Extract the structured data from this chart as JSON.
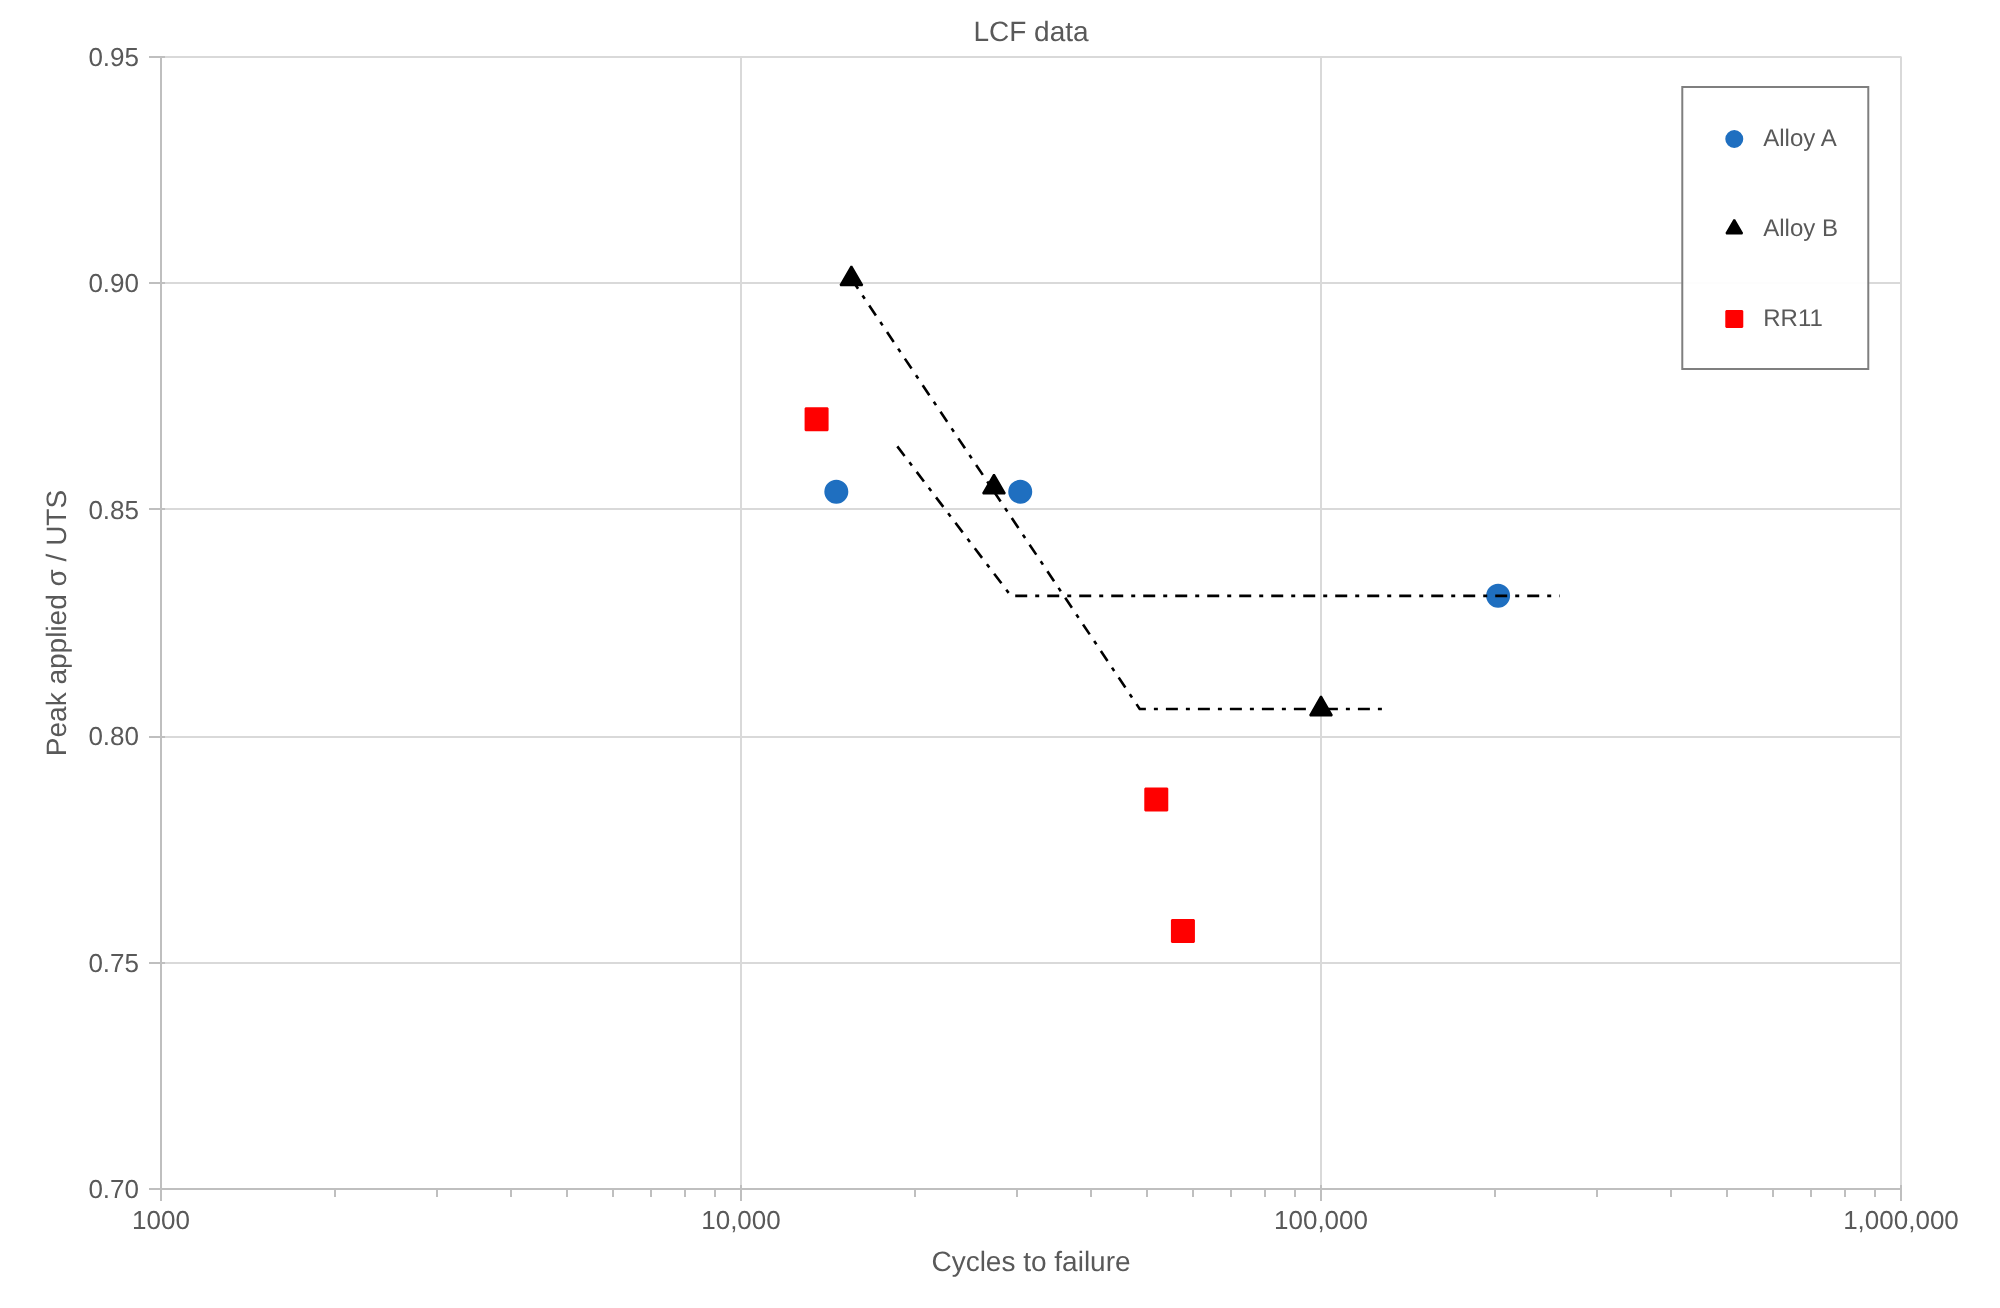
{
  "chart_data": {
    "type": "scatter",
    "title": "LCF data",
    "xlabel": "Cycles to failure",
    "ylabel": "Peak applied σ / UTS",
    "log": "x",
    "xlim": [
      1000,
      1000000
    ],
    "ylim": [
      0.7,
      0.95
    ],
    "xticks": [
      1000,
      {
        "value": 10000,
        "label": "10,000"
      },
      {
        "value": 100000,
        "label": "100,000"
      },
      {
        "value": 1000000,
        "label": "1,000,000"
      }
    ],
    "yticks": [
      {
        "value": 0.7,
        "label": "0.70"
      },
      {
        "value": 0.75,
        "label": "0.75"
      },
      {
        "value": 0.8,
        "label": "0.80"
      },
      {
        "value": 0.85,
        "label": "0.85"
      },
      {
        "value": 0.9,
        "label": "0.90"
      },
      {
        "value": 0.95,
        "label": "0.95"
      }
    ],
    "grid": true,
    "legend": "top right",
    "series": [
      {
        "name": "Alloy A",
        "color": "#1f6fc0",
        "marker": "circle",
        "x": [
          14600,
          30300,
          202000
        ],
        "values": [
          0.854,
          0.854,
          0.831
        ]
      },
      {
        "name": "Alloy B",
        "color": "#000000",
        "marker": "triangle",
        "x": [
          15500,
          27300,
          100000
        ],
        "values": [
          0.901,
          0.855,
          0.806
        ]
      },
      {
        "name": "RR11",
        "color": "#ff0000",
        "marker": "square",
        "x": [
          13500,
          52000,
          57800
        ],
        "values": [
          0.87,
          0.786,
          0.757
        ]
      },
      {
        "type": "line",
        "color": "#000000",
        "line_style": "dashed",
        "marker": "none",
        "x": [
          15500,
          48700,
          130000
        ],
        "values": [
          0.901,
          0.806,
          0.806
        ]
      },
      {
        "type": "line",
        "color": "#000000",
        "line_style": "dashed",
        "marker": "none",
        "x": [
          18600,
          29200,
          258000
        ],
        "values": [
          0.864,
          0.831,
          0.831
        ]
      }
    ]
  }
}
